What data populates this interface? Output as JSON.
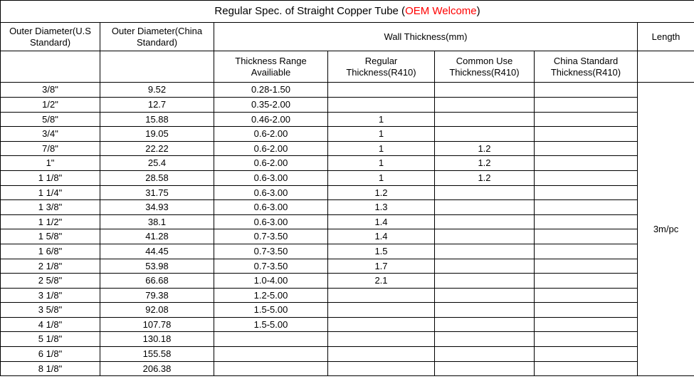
{
  "title_prefix": "Regular Spec. of Straight Copper Tube (",
  "title_oem": "OEM Welcome",
  "title_suffix": ")",
  "headers": {
    "od_us": "Outer Diameter(U.S Standard)",
    "od_cn": "Outer Diameter(China Standard)",
    "wall": "Wall Thickness(mm)",
    "length": "Length",
    "thick_range": "Thickness Range Availiable",
    "reg_thick": "Regular Thickness(R410)",
    "common_thick": "Common Use Thickness(R410)",
    "cn_std_thick": "China Standard Thickness(R410)"
  },
  "length_value": "3m/pc",
  "rows": [
    {
      "us": "3/8\"",
      "cn": "9.52",
      "range": "0.28-1.50",
      "reg": "",
      "common": "",
      "cnstd": ""
    },
    {
      "us": "1/2\"",
      "cn": "12.7",
      "range": "0.35-2.00",
      "reg": "",
      "common": "",
      "cnstd": ""
    },
    {
      "us": "5/8\"",
      "cn": "15.88",
      "range": "0.46-2.00",
      "reg": "1",
      "common": "",
      "cnstd": ""
    },
    {
      "us": "3/4\"",
      "cn": "19.05",
      "range": "0.6-2.00",
      "reg": "1",
      "common": "",
      "cnstd": ""
    },
    {
      "us": "7/8\"",
      "cn": "22.22",
      "range": "0.6-2.00",
      "reg": "1",
      "common": "1.2",
      "cnstd": ""
    },
    {
      "us": "1\"",
      "cn": "25.4",
      "range": "0.6-2.00",
      "reg": "1",
      "common": "1.2",
      "cnstd": ""
    },
    {
      "us": "1 1/8\"",
      "cn": "28.58",
      "range": "0.6-3.00",
      "reg": "1",
      "common": "1.2",
      "cnstd": ""
    },
    {
      "us": "1 1/4\"",
      "cn": "31.75",
      "range": "0.6-3.00",
      "reg": "1.2",
      "common": "",
      "cnstd": ""
    },
    {
      "us": "1 3/8\"",
      "cn": "34.93",
      "range": "0.6-3.00",
      "reg": "1.3",
      "common": "",
      "cnstd": ""
    },
    {
      "us": "1 1/2\"",
      "cn": "38.1",
      "range": "0.6-3.00",
      "reg": "1.4",
      "common": "",
      "cnstd": ""
    },
    {
      "us": "1 5/8\"",
      "cn": "41.28",
      "range": "0.7-3.50",
      "reg": "1.4",
      "common": "",
      "cnstd": ""
    },
    {
      "us": "1 6/8\"",
      "cn": "44.45",
      "range": "0.7-3.50",
      "reg": "1.5",
      "common": "",
      "cnstd": ""
    },
    {
      "us": "2 1/8\"",
      "cn": "53.98",
      "range": "0.7-3.50",
      "reg": "1.7",
      "common": "",
      "cnstd": ""
    },
    {
      "us": "2 5/8\"",
      "cn": "66.68",
      "range": "1.0-4.00",
      "reg": "2.1",
      "common": "",
      "cnstd": ""
    },
    {
      "us": "3 1/8\"",
      "cn": "79.38",
      "range": "1.2-5.00",
      "reg": "",
      "common": "",
      "cnstd": ""
    },
    {
      "us": "3 5/8\"",
      "cn": "92.08",
      "range": "1.5-5.00",
      "reg": "",
      "common": "",
      "cnstd": ""
    },
    {
      "us": "4 1/8\"",
      "cn": "107.78",
      "range": "1.5-5.00",
      "reg": "",
      "common": "",
      "cnstd": ""
    },
    {
      "us": "5 1/8\"",
      "cn": "130.18",
      "range": "",
      "reg": "",
      "common": "",
      "cnstd": ""
    },
    {
      "us": "6 1/8\"",
      "cn": "155.58",
      "range": "",
      "reg": "",
      "common": "",
      "cnstd": ""
    },
    {
      "us": "8 1/8\"",
      "cn": "206.38",
      "range": "",
      "reg": "",
      "common": "",
      "cnstd": ""
    }
  ],
  "col_widths": {
    "us": 140,
    "cn": 160,
    "range": 160,
    "reg": 150,
    "common": 140,
    "cnstd": 145,
    "length": 80
  }
}
